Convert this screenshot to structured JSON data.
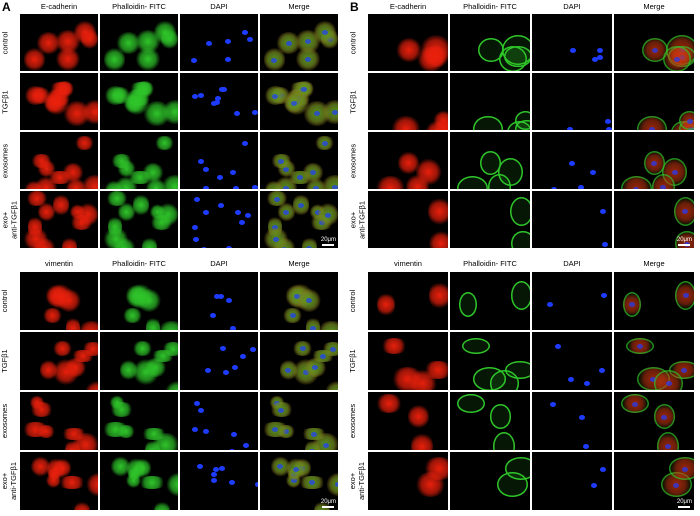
{
  "panels": [
    {
      "letter": "A",
      "blocks": [
        {
          "columns": [
            "E-cadherin",
            "Phalloidin- FITC",
            "DAPI",
            "Merge"
          ],
          "rows": [
            "control",
            "TGFβ1",
            "exosomes",
            "exo+\nanti-TGFβ1"
          ],
          "scale_bar": "20μm"
        },
        {
          "columns": [
            "vimentin",
            "Phalloidin- FITC",
            "DAPI",
            "Merge"
          ],
          "rows": [
            "control",
            "TGFβ1",
            "exosomes",
            "exo+\nanti-TGFβ1"
          ],
          "scale_bar": "20μm"
        }
      ]
    },
    {
      "letter": "B",
      "blocks": [
        {
          "columns": [
            "E-cadherin",
            "Phalloidin- FITC",
            "DAPI",
            "Merge"
          ],
          "rows": [
            "control",
            "TGFβ1",
            "exosomes",
            "exo+\nanti-TGFβ1"
          ],
          "scale_bar": "20μm"
        },
        {
          "columns": [
            "vimentin",
            "Phalloidin- FITC",
            "DAPI",
            "Merge"
          ],
          "rows": [
            "control",
            "TGFβ1",
            "exosomes",
            "exo+\nanti-TGFβ1"
          ],
          "scale_bar": "20μm"
        }
      ]
    }
  ],
  "channel_colors": {
    "red": "#e8200c",
    "green": "#2fc52a",
    "blue": "#1e3cff",
    "background": "#000000"
  }
}
